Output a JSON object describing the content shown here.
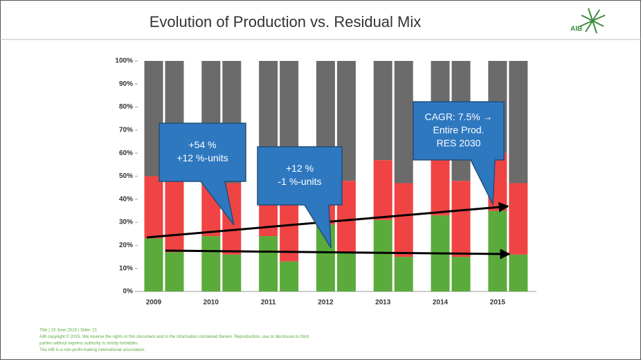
{
  "chart_data": {
    "type": "stacked-bar-pairs",
    "title": "Evolution of Production vs. Residual Mix",
    "logo": "AIB",
    "categories": [
      "2009",
      "2010",
      "2011",
      "2012",
      "2013",
      "2014",
      "2015"
    ],
    "ylim": [
      0,
      100
    ],
    "yticks": [
      {
        "value": 0,
        "label": "0%"
      },
      {
        "value": 10,
        "label": "10%"
      },
      {
        "value": 20,
        "label": "20%"
      },
      {
        "value": 30,
        "label": "30%"
      },
      {
        "value": 40,
        "label": "40%"
      },
      {
        "value": 50,
        "label": "50%"
      },
      {
        "value": 60,
        "label": "60%"
      },
      {
        "value": 70,
        "label": "70%"
      },
      {
        "value": 80,
        "label": "80%"
      },
      {
        "value": 90,
        "label": "90%"
      },
      {
        "value": 100,
        "label": "100%"
      }
    ],
    "stacks": [
      {
        "series": [
          {
            "color": "#5aab3c",
            "values": [
              23,
              24,
              24,
              29,
              31,
              33,
              35
            ]
          },
          {
            "color": "#f04444",
            "values": [
              27,
              26,
              26,
              18,
              26,
              25,
              25
            ]
          },
          {
            "color": "#6b6b6b",
            "values": [
              50,
              50,
              50,
              53,
              43,
              42,
              40
            ]
          }
        ]
      },
      {
        "series": [
          {
            "color": "#5aab3c",
            "values": [
              17,
              16,
              13,
              17,
              15,
              15,
              16
            ]
          },
          {
            "color": "#f04444",
            "values": [
              33,
              31,
              34,
              31,
              32,
              33,
              31
            ]
          },
          {
            "color": "#6b6b6b",
            "values": [
              50,
              53,
              53,
              52,
              53,
              52,
              53
            ]
          }
        ]
      }
    ],
    "annotations": [
      {
        "lines": [
          "+54 %",
          "+12 %-units"
        ]
      },
      {
        "lines": [
          "+12 %",
          "-1 %-units"
        ]
      },
      {
        "lines": [
          "CAGR: 7.5% →",
          "Entire Prod.",
          "RES 2030"
        ]
      }
    ],
    "footer": [
      "Title | 15 June 2016 | Slide: 21",
      "AIB copyright © 2015. We reserve the rights in this document and in the information contained therein. Reproduction, use or disclosure to third",
      "parties without express authority is strictly forbidden.",
      "The AIB is a non-profit-making international association."
    ]
  }
}
